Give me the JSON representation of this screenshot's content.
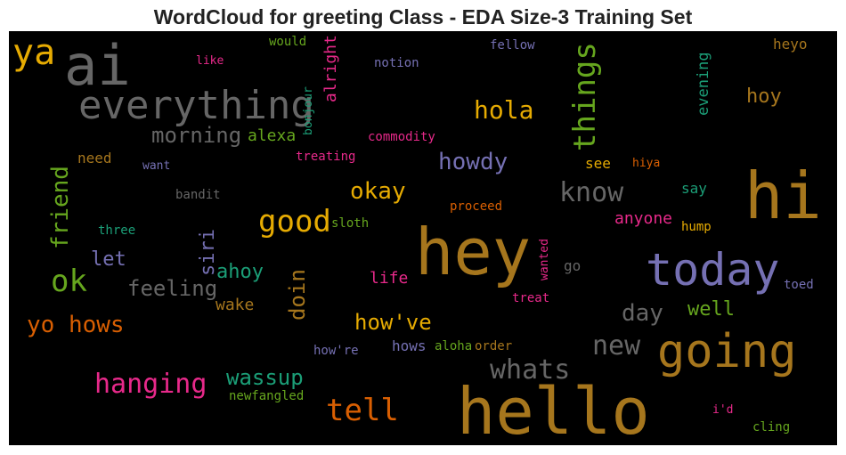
{
  "chart_data": {
    "type": "wordcloud",
    "title": "WordCloud for greeting Class - EDA Size-3 Training Set",
    "background": "#000000",
    "words": [
      {
        "text": "ya",
        "color": "#e6ab02"
      },
      {
        "text": "ai",
        "color": "#666666"
      },
      {
        "text": "everything",
        "color": "#666666"
      },
      {
        "text": "morning",
        "color": "#666666"
      },
      {
        "text": "alexa",
        "color": "#66a61e"
      },
      {
        "text": "would",
        "color": "#66a61e"
      },
      {
        "text": "like",
        "color": "#e7298a"
      },
      {
        "text": "alright",
        "color": "#e7298a"
      },
      {
        "text": "bonjour",
        "color": "#1b9e77"
      },
      {
        "text": "notion",
        "color": "#7570b3"
      },
      {
        "text": "fellow",
        "color": "#7570b3"
      },
      {
        "text": "things",
        "color": "#66a61e"
      },
      {
        "text": "hola",
        "color": "#e6ab02"
      },
      {
        "text": "heyo",
        "color": "#a6761d"
      },
      {
        "text": "evening",
        "color": "#1b9e77"
      },
      {
        "text": "hoy",
        "color": "#a6761d"
      },
      {
        "text": "commodity",
        "color": "#e7298a"
      },
      {
        "text": "treating",
        "color": "#e7298a"
      },
      {
        "text": "need",
        "color": "#a6761d"
      },
      {
        "text": "want",
        "color": "#7570b3"
      },
      {
        "text": "howdy",
        "color": "#7570b3"
      },
      {
        "text": "see",
        "color": "#e6ab02"
      },
      {
        "text": "hiya",
        "color": "#d95f02"
      },
      {
        "text": "hi",
        "color": "#a6761d"
      },
      {
        "text": "friend",
        "color": "#66a61e"
      },
      {
        "text": "bandit",
        "color": "#666666"
      },
      {
        "text": "okay",
        "color": "#e6ab02"
      },
      {
        "text": "know",
        "color": "#666666"
      },
      {
        "text": "say",
        "color": "#1b9e77"
      },
      {
        "text": "good",
        "color": "#e6ab02"
      },
      {
        "text": "three",
        "color": "#1b9e77"
      },
      {
        "text": "sloth",
        "color": "#66a61e"
      },
      {
        "text": "proceed",
        "color": "#d95f02"
      },
      {
        "text": "anyone",
        "color": "#e7298a"
      },
      {
        "text": "hump",
        "color": "#e6ab02"
      },
      {
        "text": "siri",
        "color": "#7570b3"
      },
      {
        "text": "hey",
        "color": "#a6761d"
      },
      {
        "text": "let",
        "color": "#7570b3"
      },
      {
        "text": "today",
        "color": "#7570b3"
      },
      {
        "text": "ok",
        "color": "#66a61e"
      },
      {
        "text": "ahoy",
        "color": "#1b9e77"
      },
      {
        "text": "wanted",
        "color": "#e7298a"
      },
      {
        "text": "go",
        "color": "#666666"
      },
      {
        "text": "feeling",
        "color": "#666666"
      },
      {
        "text": "doin",
        "color": "#a6761d"
      },
      {
        "text": "life",
        "color": "#e7298a"
      },
      {
        "text": "treat",
        "color": "#e7298a"
      },
      {
        "text": "toed",
        "color": "#7570b3"
      },
      {
        "text": "wake",
        "color": "#a6761d"
      },
      {
        "text": "day",
        "color": "#666666"
      },
      {
        "text": "well",
        "color": "#66a61e"
      },
      {
        "text": "yo hows",
        "color": "#d95f02"
      },
      {
        "text": "how've",
        "color": "#e6ab02"
      },
      {
        "text": "new",
        "color": "#666666"
      },
      {
        "text": "how're",
        "color": "#7570b3"
      },
      {
        "text": "hows",
        "color": "#7570b3"
      },
      {
        "text": "aloha",
        "color": "#66a61e"
      },
      {
        "text": "order",
        "color": "#a6761d"
      },
      {
        "text": "going",
        "color": "#a6761d"
      },
      {
        "text": "whats",
        "color": "#666666"
      },
      {
        "text": "wassup",
        "color": "#1b9e77"
      },
      {
        "text": "hanging",
        "color": "#e7298a"
      },
      {
        "text": "newfangled",
        "color": "#66a61e"
      },
      {
        "text": "tell",
        "color": "#d95f02"
      },
      {
        "text": "hello",
        "color": "#a6761d"
      },
      {
        "text": "i'd",
        "color": "#e7298a"
      },
      {
        "text": "cling",
        "color": "#66a61e"
      }
    ]
  }
}
